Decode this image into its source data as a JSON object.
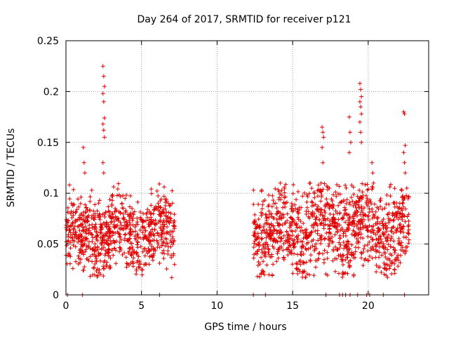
{
  "chart_data": {
    "type": "scatter",
    "title": "Day 264 of 2017, SRMTID for receiver p121",
    "xlabel": "GPS time / hours",
    "ylabel": "SRMTID / TECUs",
    "xlim": [
      0,
      24
    ],
    "ylim": [
      0,
      0.25
    ],
    "xticks": [
      0,
      5,
      10,
      15,
      20
    ],
    "xtick_labels": [
      "0",
      "5",
      "10",
      "15",
      "20"
    ],
    "yticks": [
      0,
      0.05,
      0.1,
      0.15,
      0.2,
      0.25
    ],
    "ytick_labels": [
      "0",
      "0.05",
      "0.1",
      "0.15",
      "0.2",
      "0.25"
    ],
    "grid": true,
    "marker": "+",
    "color": "#e00000",
    "segments": [
      {
        "start": 0.0,
        "end": 7.2,
        "base": 0.06,
        "spread": 0.025
      },
      {
        "start": 12.4,
        "end": 22.7,
        "base": 0.065,
        "spread": 0.03
      }
    ],
    "spikes": [
      {
        "x": 2.5,
        "values": [
          0.225,
          0.215,
          0.205,
          0.198,
          0.19,
          0.174,
          0.168,
          0.162,
          0.155,
          0.13,
          0.12
        ]
      },
      {
        "x": 1.2,
        "values": [
          0.145,
          0.13,
          0.12
        ]
      },
      {
        "x": 17.0,
        "values": [
          0.165,
          0.16,
          0.155,
          0.145,
          0.13
        ]
      },
      {
        "x": 19.5,
        "values": [
          0.208,
          0.202,
          0.195,
          0.19,
          0.185,
          0.178,
          0.17,
          0.16,
          0.15
        ]
      },
      {
        "x": 18.8,
        "values": [
          0.175,
          0.16,
          0.15,
          0.14
        ]
      },
      {
        "x": 22.4,
        "values": [
          0.18,
          0.178,
          0.147,
          0.14,
          0.13,
          0.12
        ]
      },
      {
        "x": 20.3,
        "values": [
          0.13,
          0.12,
          0.11
        ]
      }
    ],
    "zeros": [
      0.1,
      1.1,
      6.2,
      12.4,
      13.2,
      17.2,
      18.1,
      18.3,
      18.5,
      18.8,
      19.3,
      19.9,
      20.1,
      21.0,
      22.4
    ]
  }
}
